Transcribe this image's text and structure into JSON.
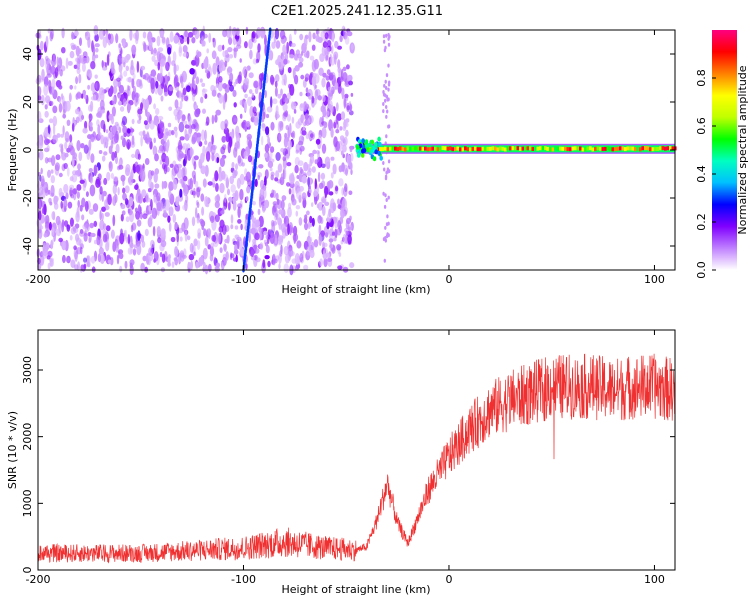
{
  "title": "C2E1.2025.241.12.35.G11",
  "chart_data": [
    {
      "type": "heatmap",
      "xlabel": "Height of straight line (km)",
      "ylabel": "Frequency (Hz)",
      "xlim": [
        -200,
        110
      ],
      "ylim": [
        -50,
        50
      ],
      "xticks": [
        -200,
        -100,
        0,
        100
      ],
      "yticks": [
        -40,
        -20,
        0,
        20,
        40
      ],
      "colorbar": {
        "label": "Normalized spectral amplitude",
        "range": [
          0,
          1
        ],
        "ticks": [
          0.0,
          0.2,
          0.4,
          0.6,
          0.8
        ],
        "colors": [
          "#ffffff",
          "#c080ff",
          "#8000ff",
          "#0000ff",
          "#00c0ff",
          "#00ffc0",
          "#00ff00",
          "#c0ff00",
          "#ffff00",
          "#ff8000",
          "#ff0000",
          "#ff0080"
        ]
      },
      "regions": [
        {
          "x": [
            -200,
            -47
          ],
          "f": [
            -50,
            50
          ],
          "amplitude": [
            0.05,
            0.2
          ],
          "kind": "noise"
        },
        {
          "x": [
            -45,
            110
          ],
          "f": [
            -2,
            3
          ],
          "amplitude": [
            0.5,
            0.95
          ],
          "kind": "carrier"
        }
      ],
      "streak": {
        "x": [
          -100,
          -87
        ],
        "f": [
          -50,
          50
        ]
      }
    },
    {
      "type": "line",
      "xlabel": "Height of straight line (km)",
      "ylabel": "SNR (10 * v/v)",
      "xlim": [
        -200,
        110
      ],
      "ylim": [
        0,
        3600
      ],
      "xticks": [
        -200,
        -100,
        0,
        100
      ],
      "yticks": [
        0,
        1000,
        2000,
        3000
      ],
      "color": "#f03030",
      "profile": {
        "x": [
          -200,
          -150,
          -100,
          -80,
          -60,
          -45,
          -40,
          -35,
          -30,
          -25,
          -20,
          -10,
          0,
          10,
          20,
          30,
          40,
          50,
          60,
          70,
          80,
          90,
          100,
          110
        ],
        "y": [
          250,
          250,
          330,
          420,
          330,
          300,
          350,
          750,
          1300,
          700,
          400,
          1200,
          1700,
          2100,
          2400,
          2550,
          2650,
          2750,
          2750,
          2750,
          2700,
          2750,
          2750,
          2700
        ]
      }
    }
  ]
}
